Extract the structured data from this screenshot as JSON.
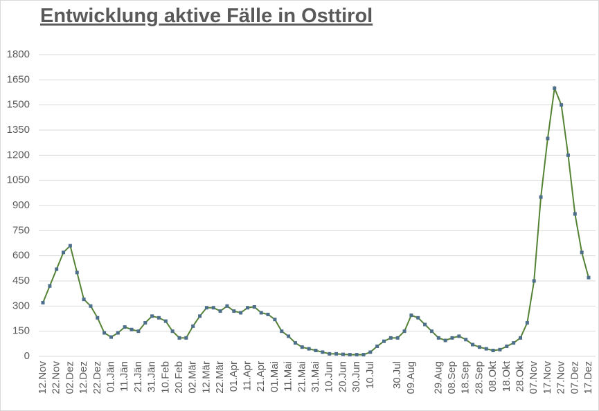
{
  "chart_data": {
    "type": "line",
    "title": "Entwicklung aktive Fälle in Osttirol",
    "categories": [
      "12.Nov",
      null,
      "22.Nov",
      null,
      "02.Dez",
      null,
      "12.Dez",
      null,
      "22.Dez",
      null,
      "01.Jän",
      null,
      "11.Jän",
      null,
      "21.Jän",
      null,
      "31.Jän",
      null,
      "10.Feb",
      null,
      "20.Feb",
      null,
      "02.Mär",
      null,
      "12.Mär",
      null,
      "22.Mär",
      null,
      "01.Apr",
      null,
      "11.Apr",
      null,
      "21.Apr",
      null,
      "01.Mai",
      null,
      "11.Mai",
      null,
      "21.Mai",
      null,
      "31.Mai",
      null,
      "10.Jun",
      null,
      "20.Jun",
      null,
      "30.Jun",
      null,
      "10.Jul",
      null,
      null,
      null,
      "30.Jul",
      null,
      "09.Aug",
      null,
      null,
      null,
      "29.Aug",
      null,
      "08.Sep",
      null,
      "18.Sep",
      null,
      "28.Sep",
      null,
      "08.Okt",
      null,
      "18.Okt",
      null,
      "28.Okt",
      null,
      "07.Nov",
      null,
      "17.Nov",
      null,
      "27.Nov",
      null,
      "07.Dez",
      null,
      "17.Dez"
    ],
    "series": [
      {
        "color": "#548235",
        "marker_color": "#4e6f8c",
        "values": [
          320,
          420,
          520,
          620,
          660,
          500,
          340,
          300,
          230,
          140,
          115,
          140,
          175,
          160,
          150,
          200,
          240,
          230,
          210,
          150,
          110,
          110,
          180,
          240,
          290,
          290,
          270,
          300,
          270,
          260,
          290,
          295,
          260,
          250,
          220,
          150,
          120,
          80,
          55,
          45,
          35,
          25,
          15,
          15,
          12,
          10,
          10,
          10,
          25,
          60,
          90,
          110,
          110,
          150,
          245,
          230,
          190,
          150,
          110,
          95,
          110,
          120,
          100,
          70,
          55,
          45,
          35,
          40,
          60,
          80,
          110,
          200,
          450,
          950,
          1300,
          1600,
          1500,
          1200,
          850,
          620,
          470
        ]
      }
    ],
    "ylim": [
      0,
      1800
    ],
    "yticks": [
      0,
      150,
      300,
      450,
      600,
      750,
      900,
      1050,
      1200,
      1350,
      1500,
      1650,
      1800
    ],
    "grid": true
  }
}
